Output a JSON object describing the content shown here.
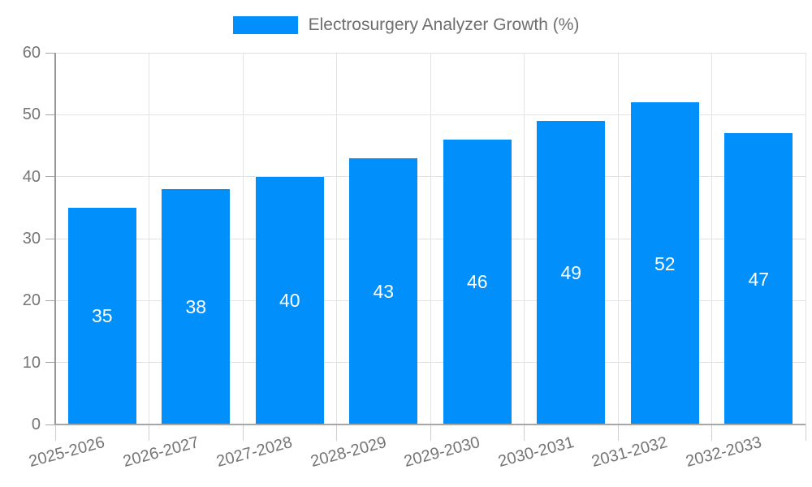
{
  "chart_data": {
    "type": "bar",
    "title": "Electrosurgery Analyzer Growth (%)",
    "categories": [
      "2025-2026",
      "2026-2027",
      "2027-2028",
      "2028-2029",
      "2029-2030",
      "2030-2031",
      "2031-2032",
      "2032-2033"
    ],
    "values": [
      35,
      38,
      40,
      43,
      46,
      49,
      52,
      47
    ],
    "value_labels": [
      "35",
      "38",
      "40",
      "43",
      "46",
      "49",
      "52",
      "47"
    ],
    "xlabel": "",
    "ylabel": "",
    "ylim": [
      0,
      60
    ],
    "yticks": [
      0,
      10,
      20,
      30,
      40,
      50,
      60
    ],
    "ytick_labels": [
      "0",
      "10",
      "20",
      "30",
      "40",
      "50",
      "60"
    ],
    "grid": true,
    "legend_position": "top-center",
    "xtick_rotation_deg": -15,
    "colors": {
      "bar": "#008FFB",
      "value_label": "#ffffff",
      "grid": "#e3e3e3",
      "axis": "#979797",
      "baseline": "#a6a6a6",
      "category_tick": "#cfcfcf",
      "text": "#757575",
      "legend_text": "#6e6e6e"
    }
  }
}
